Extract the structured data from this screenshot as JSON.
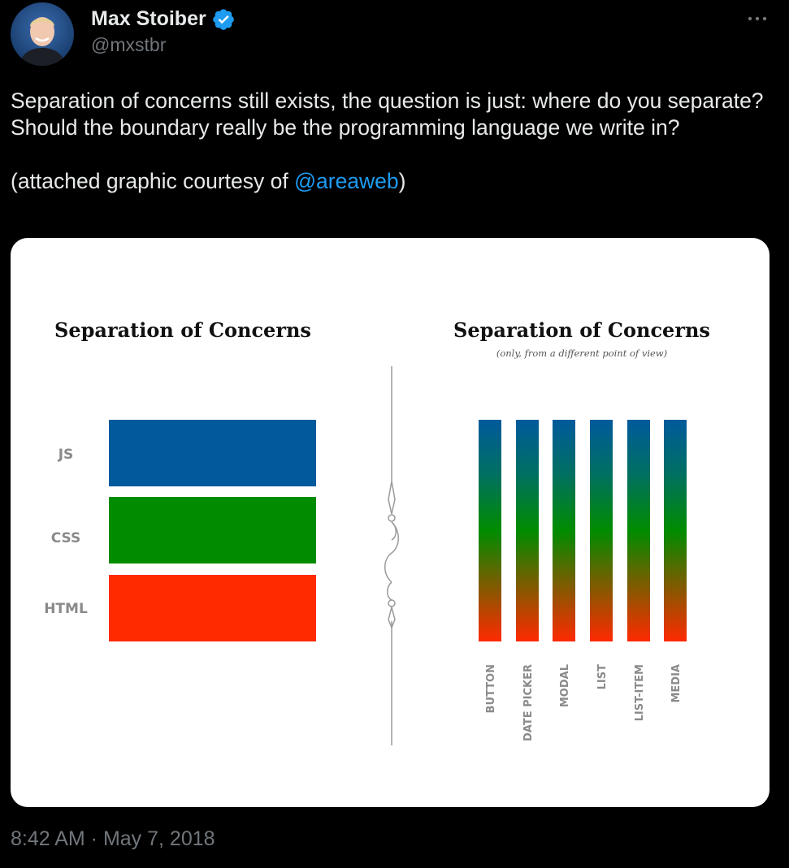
{
  "author": {
    "name": "Max Stoiber",
    "handle": "@mxstbr",
    "verified": true,
    "avatar_icon": "profile-photo"
  },
  "header": {
    "more_icon": "ellipsis-icon"
  },
  "tweet": {
    "text_line_1": "Separation of concerns still exists, the question is just: where do you separate? Should the boundary really be the programming language we write in?",
    "text_line_2_prefix": "(attached graphic courtesy of ",
    "mention": "@areaweb",
    "text_line_2_suffix": ")"
  },
  "graphic": {
    "left_title": "Separation of Concerns",
    "right_title": "Separation of Concerns",
    "right_subtitle": "(only, from a different point of view)",
    "layers": [
      {
        "label": "JS",
        "color": "#005a9c"
      },
      {
        "label": "CSS",
        "color": "#008c00"
      },
      {
        "label": "HTML",
        "color": "#ff2a00"
      }
    ],
    "components": [
      "BUTTON",
      "DATE PICKER",
      "MODAL",
      "LIST",
      "LIST-ITEM",
      "MEDIA"
    ],
    "gradient": {
      "top": "#005a9c",
      "upper": "#007060",
      "middle": "#008c00",
      "bottom": "#ff2a00"
    }
  },
  "footer": {
    "timestamp": "8:42 AM · May 7, 2018"
  },
  "colors": {
    "link": "#1d9bf0",
    "verified": "#1d9bf0",
    "muted": "#71767b",
    "text": "#e7e9ea"
  }
}
